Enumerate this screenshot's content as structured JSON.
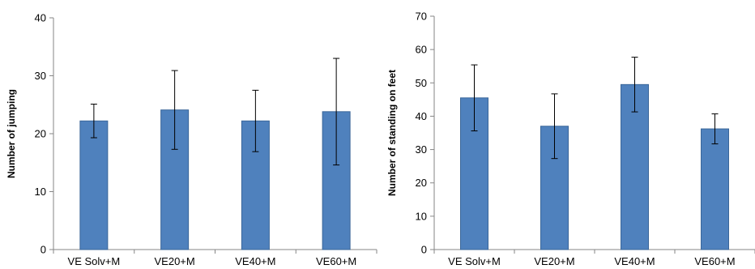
{
  "chart_data": [
    {
      "type": "bar",
      "categories": [
        "VE Solv+M",
        "VE20+M",
        "VE40+M",
        "VE60+M"
      ],
      "values": [
        22.2,
        24.1,
        22.2,
        23.8
      ],
      "error": [
        2.9,
        6.8,
        5.3,
        9.2
      ],
      "title": "",
      "xlabel": "",
      "ylabel": "Number of jumping",
      "ylim": [
        0,
        40
      ],
      "yticks": [
        0,
        10,
        20,
        30,
        40
      ],
      "grid": false,
      "bar_color": "#4F81BD"
    },
    {
      "type": "bar",
      "categories": [
        "VE Solv+M",
        "VE20+M",
        "VE40+M",
        "VE60+M"
      ],
      "values": [
        45.5,
        37.0,
        49.5,
        36.2
      ],
      "error": [
        9.9,
        9.7,
        8.2,
        4.5
      ],
      "title": "",
      "xlabel": "",
      "ylabel": "Number of standing on feet",
      "ylim": [
        0,
        70
      ],
      "yticks": [
        0,
        10,
        20,
        30,
        40,
        50,
        60,
        70
      ],
      "grid": false,
      "bar_color": "#4F81BD"
    }
  ]
}
